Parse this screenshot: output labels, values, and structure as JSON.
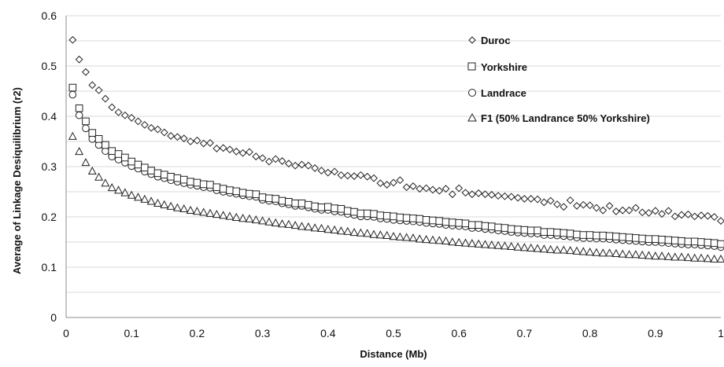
{
  "chart_data": {
    "type": "scatter",
    "title": "",
    "xlabel": "Distance (Mb)",
    "ylabel": "Average of Linkage Desiquilibrium (r2)",
    "xlim": [
      0,
      1
    ],
    "ylim": [
      0,
      0.6
    ],
    "x_ticks": [
      0,
      0.1,
      0.2,
      0.3,
      0.4,
      0.5,
      0.6,
      0.7,
      0.8,
      0.9,
      1
    ],
    "x_tick_labels": [
      "0",
      "0.1",
      "0.2",
      "0.3",
      "0.4",
      "0.5",
      "0.6",
      "0.7",
      "0.8",
      "0.9",
      "1"
    ],
    "y_ticks": [
      0,
      0.1,
      0.2,
      0.3,
      0.4,
      0.5,
      0.6
    ],
    "y_tick_labels": [
      "0",
      "0.1",
      "0.2",
      "0.3",
      "0.4",
      "0.5",
      "0.6"
    ],
    "y_gridlines": [
      0.05,
      0.1,
      0.15,
      0.2,
      0.25,
      0.3,
      0.35,
      0.4,
      0.45,
      0.5,
      0.55,
      0.6
    ],
    "grid": true,
    "legend_position": "top-right",
    "x": {
      "start": 0.01,
      "step": 0.01,
      "count": 100
    },
    "series": [
      {
        "name": "Duroc",
        "marker": "diamond",
        "color": "#222222",
        "values": [
          0.552,
          0.513,
          0.488,
          0.462,
          0.452,
          0.435,
          0.418,
          0.408,
          0.402,
          0.397,
          0.39,
          0.383,
          0.377,
          0.374,
          0.368,
          0.361,
          0.359,
          0.356,
          0.35,
          0.352,
          0.346,
          0.347,
          0.336,
          0.337,
          0.334,
          0.33,
          0.327,
          0.329,
          0.32,
          0.317,
          0.31,
          0.315,
          0.311,
          0.306,
          0.302,
          0.304,
          0.302,
          0.297,
          0.292,
          0.288,
          0.29,
          0.283,
          0.282,
          0.281,
          0.283,
          0.28,
          0.277,
          0.267,
          0.264,
          0.268,
          0.273,
          0.259,
          0.261,
          0.256,
          0.257,
          0.254,
          0.252,
          0.256,
          0.245,
          0.257,
          0.248,
          0.245,
          0.247,
          0.245,
          0.244,
          0.242,
          0.241,
          0.24,
          0.238,
          0.236,
          0.236,
          0.235,
          0.229,
          0.232,
          0.225,
          0.22,
          0.233,
          0.222,
          0.224,
          0.223,
          0.218,
          0.213,
          0.222,
          0.211,
          0.213,
          0.213,
          0.218,
          0.209,
          0.208,
          0.212,
          0.206,
          0.212,
          0.201,
          0.204,
          0.205,
          0.201,
          0.203,
          0.202,
          0.2,
          0.192
        ]
      },
      {
        "name": "Yorkshire",
        "marker": "square",
        "color": "#222222",
        "values": [
          0.457,
          0.416,
          0.39,
          0.367,
          0.355,
          0.343,
          0.331,
          0.325,
          0.318,
          0.31,
          0.304,
          0.298,
          0.292,
          0.287,
          0.284,
          0.28,
          0.277,
          0.274,
          0.27,
          0.268,
          0.265,
          0.264,
          0.259,
          0.256,
          0.253,
          0.251,
          0.248,
          0.246,
          0.245,
          0.239,
          0.237,
          0.236,
          0.232,
          0.23,
          0.227,
          0.227,
          0.224,
          0.221,
          0.219,
          0.22,
          0.217,
          0.216,
          0.212,
          0.21,
          0.207,
          0.207,
          0.206,
          0.203,
          0.202,
          0.201,
          0.199,
          0.198,
          0.197,
          0.196,
          0.194,
          0.193,
          0.192,
          0.19,
          0.189,
          0.188,
          0.187,
          0.184,
          0.184,
          0.182,
          0.181,
          0.179,
          0.178,
          0.176,
          0.175,
          0.174,
          0.173,
          0.173,
          0.17,
          0.17,
          0.169,
          0.168,
          0.167,
          0.165,
          0.164,
          0.164,
          0.163,
          0.163,
          0.162,
          0.161,
          0.16,
          0.159,
          0.158,
          0.157,
          0.156,
          0.156,
          0.155,
          0.154,
          0.153,
          0.152,
          0.151,
          0.151,
          0.15,
          0.149,
          0.148,
          0.146
        ]
      },
      {
        "name": "Landrace",
        "marker": "circle",
        "color": "#222222",
        "values": [
          0.443,
          0.402,
          0.376,
          0.355,
          0.343,
          0.331,
          0.32,
          0.314,
          0.308,
          0.301,
          0.296,
          0.29,
          0.285,
          0.28,
          0.277,
          0.273,
          0.27,
          0.267,
          0.264,
          0.262,
          0.259,
          0.258,
          0.253,
          0.25,
          0.248,
          0.246,
          0.243,
          0.241,
          0.24,
          0.234,
          0.232,
          0.231,
          0.227,
          0.225,
          0.222,
          0.222,
          0.219,
          0.216,
          0.214,
          0.214,
          0.211,
          0.21,
          0.206,
          0.204,
          0.201,
          0.201,
          0.2,
          0.197,
          0.196,
          0.194,
          0.193,
          0.192,
          0.191,
          0.19,
          0.188,
          0.187,
          0.186,
          0.184,
          0.183,
          0.182,
          0.181,
          0.178,
          0.178,
          0.176,
          0.175,
          0.173,
          0.172,
          0.17,
          0.169,
          0.168,
          0.167,
          0.167,
          0.164,
          0.164,
          0.163,
          0.162,
          0.161,
          0.159,
          0.158,
          0.158,
          0.157,
          0.157,
          0.156,
          0.155,
          0.154,
          0.153,
          0.152,
          0.151,
          0.15,
          0.15,
          0.149,
          0.148,
          0.147,
          0.146,
          0.145,
          0.145,
          0.144,
          0.143,
          0.142,
          0.14
        ]
      },
      {
        "name": "F1 (50% Landrance 50% Yorkshire)",
        "marker": "triangle",
        "color": "#222222",
        "values": [
          0.36,
          0.33,
          0.308,
          0.291,
          0.279,
          0.267,
          0.258,
          0.253,
          0.248,
          0.243,
          0.239,
          0.235,
          0.231,
          0.227,
          0.224,
          0.221,
          0.218,
          0.216,
          0.213,
          0.211,
          0.209,
          0.207,
          0.205,
          0.203,
          0.201,
          0.199,
          0.197,
          0.196,
          0.194,
          0.192,
          0.19,
          0.188,
          0.186,
          0.185,
          0.183,
          0.181,
          0.18,
          0.178,
          0.177,
          0.175,
          0.174,
          0.172,
          0.171,
          0.169,
          0.168,
          0.167,
          0.165,
          0.164,
          0.163,
          0.161,
          0.16,
          0.159,
          0.158,
          0.156,
          0.155,
          0.154,
          0.153,
          0.152,
          0.15,
          0.149,
          0.148,
          0.147,
          0.146,
          0.145,
          0.144,
          0.143,
          0.142,
          0.141,
          0.14,
          0.139,
          0.138,
          0.137,
          0.136,
          0.135,
          0.134,
          0.134,
          0.133,
          0.132,
          0.131,
          0.13,
          0.129,
          0.128,
          0.128,
          0.127,
          0.126,
          0.125,
          0.125,
          0.124,
          0.123,
          0.122,
          0.122,
          0.121,
          0.12,
          0.12,
          0.119,
          0.118,
          0.118,
          0.117,
          0.116,
          0.116
        ]
      }
    ]
  }
}
